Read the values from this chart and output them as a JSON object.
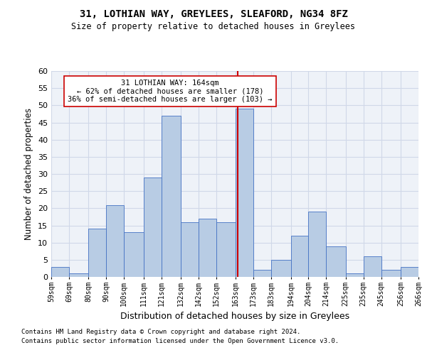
{
  "title1": "31, LOTHIAN WAY, GREYLEES, SLEAFORD, NG34 8FZ",
  "title2": "Size of property relative to detached houses in Greylees",
  "xlabel": "Distribution of detached houses by size in Greylees",
  "ylabel": "Number of detached properties",
  "footnote1": "Contains HM Land Registry data © Crown copyright and database right 2024.",
  "footnote2": "Contains public sector information licensed under the Open Government Licence v3.0.",
  "annotation_line1": "31 LOTHIAN WAY: 164sqm",
  "annotation_line2": "← 62% of detached houses are smaller (178)",
  "annotation_line3": "36% of semi-detached houses are larger (103) →",
  "property_size": 164,
  "bar_left_edges": [
    59,
    69,
    80,
    90,
    100,
    111,
    121,
    132,
    142,
    152,
    163,
    173,
    183,
    194,
    204,
    214,
    225,
    235,
    245,
    256
  ],
  "bar_widths": [
    10,
    11,
    10,
    10,
    11,
    10,
    11,
    10,
    10,
    11,
    10,
    10,
    11,
    10,
    10,
    11,
    10,
    10,
    11,
    10
  ],
  "bar_heights": [
    3,
    1,
    14,
    21,
    13,
    29,
    47,
    16,
    17,
    16,
    49,
    2,
    5,
    12,
    19,
    9,
    1,
    6,
    2,
    3
  ],
  "bar_color": "#b8cce4",
  "bar_edge_color": "#4472c4",
  "vline_x": 164,
  "vline_color": "#cc0000",
  "annotation_box_color": "#cc0000",
  "ylim": [
    0,
    60
  ],
  "yticks": [
    0,
    5,
    10,
    15,
    20,
    25,
    30,
    35,
    40,
    45,
    50,
    55,
    60
  ],
  "grid_color": "#d0d8e8",
  "bg_color": "#eef2f8",
  "tick_labels": [
    "59sqm",
    "69sqm",
    "80sqm",
    "90sqm",
    "100sqm",
    "111sqm",
    "121sqm",
    "132sqm",
    "142sqm",
    "152sqm",
    "163sqm",
    "173sqm",
    "183sqm",
    "194sqm",
    "204sqm",
    "214sqm",
    "225sqm",
    "235sqm",
    "245sqm",
    "256sqm",
    "266sqm"
  ]
}
